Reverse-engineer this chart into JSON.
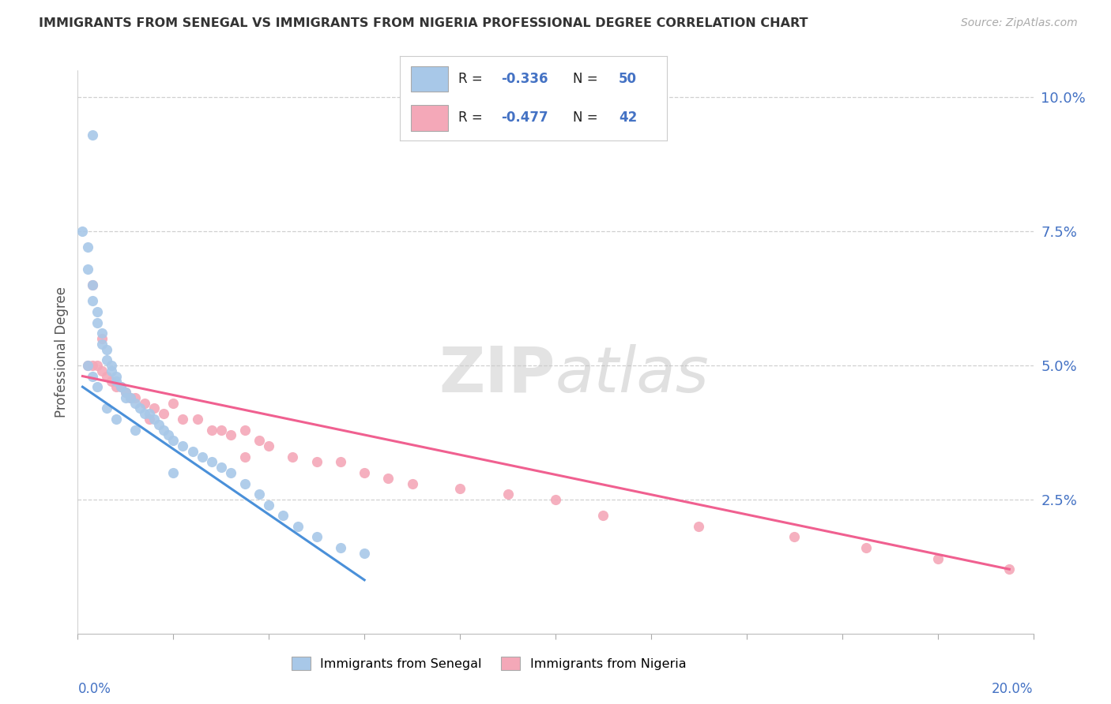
{
  "title": "IMMIGRANTS FROM SENEGAL VS IMMIGRANTS FROM NIGERIA PROFESSIONAL DEGREE CORRELATION CHART",
  "source": "Source: ZipAtlas.com",
  "ylabel": "Professional Degree",
  "right_yticks": [
    "10.0%",
    "7.5%",
    "5.0%",
    "2.5%"
  ],
  "right_ytick_vals": [
    0.1,
    0.075,
    0.05,
    0.025
  ],
  "xmin": 0.0,
  "xmax": 0.2,
  "ymin": 0.0,
  "ymax": 0.105,
  "color_senegal": "#a8c8e8",
  "color_nigeria": "#f4a8b8",
  "line_color_senegal": "#4a90d9",
  "line_color_nigeria": "#f06090",
  "legend_color_blue": "#4472c4",
  "legend_color_pink": "#e84080",
  "bg_color": "#ffffff",
  "grid_color": "#d0d0d0",
  "senegal_x": [
    0.003,
    0.001,
    0.002,
    0.002,
    0.003,
    0.003,
    0.004,
    0.004,
    0.005,
    0.005,
    0.006,
    0.006,
    0.007,
    0.007,
    0.008,
    0.008,
    0.009,
    0.01,
    0.01,
    0.011,
    0.012,
    0.013,
    0.014,
    0.015,
    0.016,
    0.017,
    0.018,
    0.019,
    0.02,
    0.022,
    0.024,
    0.026,
    0.028,
    0.03,
    0.032,
    0.035,
    0.038,
    0.04,
    0.043,
    0.046,
    0.05,
    0.055,
    0.06,
    0.002,
    0.003,
    0.004,
    0.006,
    0.008,
    0.012,
    0.02
  ],
  "senegal_y": [
    0.093,
    0.075,
    0.072,
    0.068,
    0.065,
    0.062,
    0.06,
    0.058,
    0.056,
    0.054,
    0.053,
    0.051,
    0.05,
    0.049,
    0.048,
    0.047,
    0.046,
    0.045,
    0.044,
    0.044,
    0.043,
    0.042,
    0.041,
    0.041,
    0.04,
    0.039,
    0.038,
    0.037,
    0.036,
    0.035,
    0.034,
    0.033,
    0.032,
    0.031,
    0.03,
    0.028,
    0.026,
    0.024,
    0.022,
    0.02,
    0.018,
    0.016,
    0.015,
    0.05,
    0.048,
    0.046,
    0.042,
    0.04,
    0.038,
    0.03
  ],
  "nigeria_x": [
    0.002,
    0.003,
    0.004,
    0.005,
    0.006,
    0.007,
    0.008,
    0.009,
    0.01,
    0.011,
    0.012,
    0.014,
    0.016,
    0.018,
    0.02,
    0.022,
    0.025,
    0.028,
    0.03,
    0.032,
    0.035,
    0.038,
    0.04,
    0.045,
    0.05,
    0.055,
    0.06,
    0.065,
    0.07,
    0.08,
    0.09,
    0.1,
    0.11,
    0.13,
    0.15,
    0.165,
    0.18,
    0.195,
    0.003,
    0.005,
    0.015,
    0.035
  ],
  "nigeria_y": [
    0.05,
    0.05,
    0.05,
    0.049,
    0.048,
    0.047,
    0.046,
    0.046,
    0.045,
    0.044,
    0.044,
    0.043,
    0.042,
    0.041,
    0.043,
    0.04,
    0.04,
    0.038,
    0.038,
    0.037,
    0.038,
    0.036,
    0.035,
    0.033,
    0.032,
    0.032,
    0.03,
    0.029,
    0.028,
    0.027,
    0.026,
    0.025,
    0.022,
    0.02,
    0.018,
    0.016,
    0.014,
    0.012,
    0.065,
    0.055,
    0.04,
    0.033
  ],
  "senegal_line_x": [
    0.001,
    0.06
  ],
  "senegal_line_y": [
    0.046,
    0.01
  ],
  "nigeria_line_x": [
    0.001,
    0.195
  ],
  "nigeria_line_y": [
    0.048,
    0.012
  ]
}
